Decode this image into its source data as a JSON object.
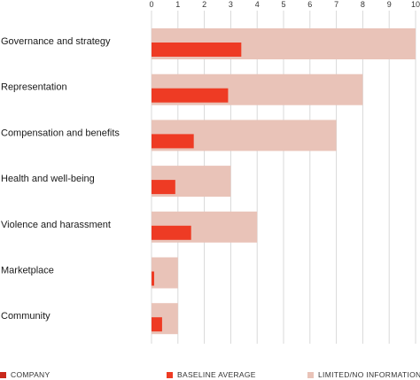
{
  "chart_data": {
    "type": "bar",
    "orientation": "horizontal",
    "categories": [
      "Governance and strategy",
      "Representation",
      "Compensation and benefits",
      "Health and well-being",
      "Violence and harassment",
      "Marketplace",
      "Community"
    ],
    "xlim": [
      0,
      10
    ],
    "x_ticks": [
      "0",
      "1",
      "2",
      "3",
      "4",
      "5",
      "6",
      "7",
      "8",
      "9",
      "10"
    ],
    "x_axis_position": "top",
    "grid": true,
    "series": [
      {
        "name": "LIMITED/NO INFORMATION",
        "values": [
          10,
          8,
          7,
          3,
          4,
          1,
          1
        ],
        "color": "#e9c3b8"
      },
      {
        "name": "BASELINE AVERAGE",
        "values": [
          3.4,
          2.9,
          1.6,
          0.9,
          1.5,
          0.1,
          0.4
        ],
        "color": "#ee3b24"
      }
    ],
    "legend": {
      "placement": "bottom",
      "items": [
        {
          "label": "COMPANY",
          "color": "#c9281b"
        },
        {
          "label": "BASELINE AVERAGE",
          "color": "#ee3b24"
        },
        {
          "label": "LIMITED/NO INFORMATION",
          "color": "#e9c3b8"
        }
      ]
    }
  }
}
